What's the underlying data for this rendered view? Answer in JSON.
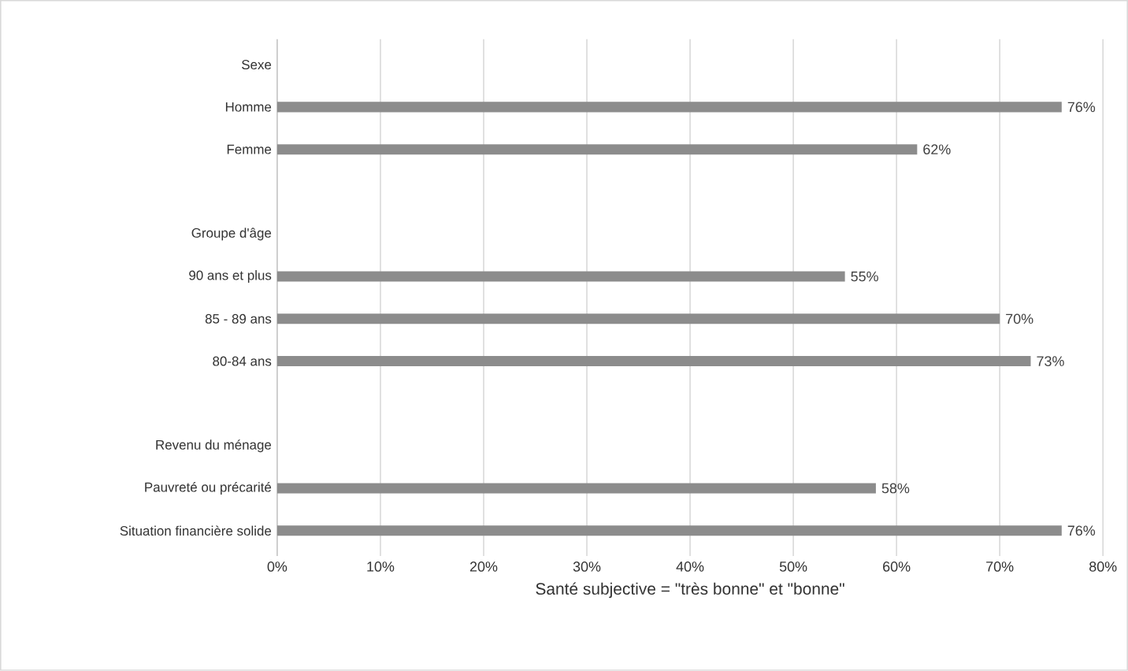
{
  "chart_data": {
    "type": "bar",
    "orientation": "horizontal",
    "xlabel": "Santé subjective = \"très bonne\" et \"bonne\"",
    "categories": [
      "Sexe",
      "Homme",
      "Femme",
      null,
      "Groupe d'âge",
      "90 ans et plus",
      "85 - 89 ans",
      "80-84 ans",
      null,
      "Revenu du ménage",
      "Pauvreté ou précarité",
      "Situation financière solide"
    ],
    "values": [
      null,
      76,
      62,
      null,
      null,
      55,
      70,
      73,
      null,
      null,
      58,
      76
    ],
    "value_labels": [
      null,
      "76%",
      "62%",
      null,
      null,
      "55%",
      "70%",
      "73%",
      null,
      null,
      "58%",
      "76%"
    ],
    "color": "#8c8c8c",
    "xlim": [
      0,
      80
    ],
    "xticks": [
      {
        "value": 0,
        "label": "0%"
      },
      {
        "value": 10,
        "label": "10%"
      },
      {
        "value": 20,
        "label": "20%"
      },
      {
        "value": 30,
        "label": "30%"
      },
      {
        "value": 40,
        "label": "40%"
      },
      {
        "value": 50,
        "label": "50%"
      },
      {
        "value": 60,
        "label": "60%"
      },
      {
        "value": 70,
        "label": "70%"
      },
      {
        "value": 80,
        "label": "80%"
      }
    ],
    "grid": "x"
  }
}
